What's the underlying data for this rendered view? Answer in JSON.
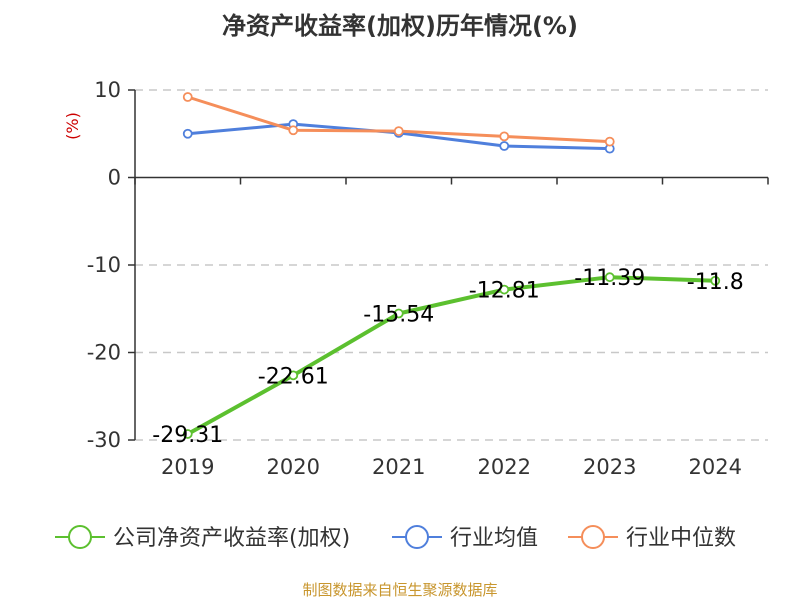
{
  "chart_data": {
    "type": "line",
    "title": "净资产收益率(加权)历年情况(%)",
    "ylabel": "(%)",
    "categories": [
      "2019",
      "2020",
      "2021",
      "2022",
      "2023",
      "2024"
    ],
    "ylim": [
      -30,
      10
    ],
    "yticks": [
      10,
      0,
      -10,
      -20,
      -30
    ],
    "grid": true,
    "legend_position": "bottom",
    "series": [
      {
        "name": "公司净资产收益率(加权)",
        "color": "#5cc02f",
        "values": [
          -29.31,
          -22.61,
          -15.54,
          -12.81,
          -11.39,
          -11.8
        ],
        "labels": [
          "-29.31",
          "-22.61",
          "-15.54",
          "-12.81",
          "-11.39",
          "-11.8"
        ]
      },
      {
        "name": "行业均值",
        "color": "#4f7fdc",
        "values": [
          5.0,
          6.1,
          5.1,
          3.6,
          3.3,
          null
        ]
      },
      {
        "name": "行业中位数",
        "color": "#f58e5a",
        "values": [
          9.2,
          5.4,
          5.3,
          4.7,
          4.1,
          null
        ]
      }
    ]
  },
  "footer": {
    "source": "制图数据来自恒生聚源数据库"
  }
}
